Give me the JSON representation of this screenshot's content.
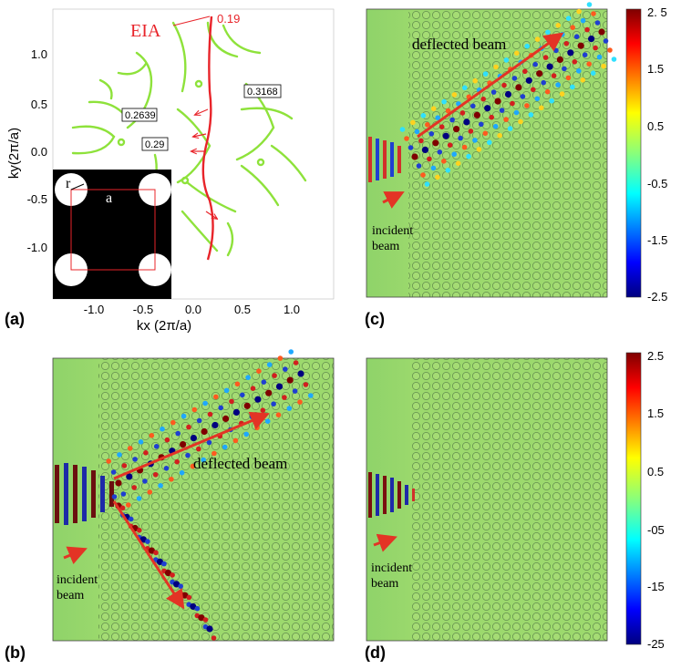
{
  "colors": {
    "contour": "#8ee23b",
    "eia": "#e8242a",
    "arrow": "#e33425",
    "field": "#9bd96b",
    "cmap": [
      "#00007f",
      "#0000ff",
      "#00ffff",
      "#8aff7a",
      "#ffff00",
      "#ff0000",
      "#7f0000"
    ]
  },
  "panel_a": {
    "label": "(a)",
    "xlabel": "kx (2π/a)",
    "ylabel": "ky(2π/a)",
    "xticks": [
      "-1.0",
      "-0.5",
      "0.0",
      "0.5",
      "1.0"
    ],
    "yticks": [
      "1.0",
      "0.5",
      "0.0",
      "-0.5",
      "-1.0"
    ],
    "eia_label": "EIA",
    "eia_value": "0.19",
    "contour_labels": [
      "0.2639",
      "0.29",
      "0.3168"
    ],
    "inset_r": "r",
    "inset_a": "a"
  },
  "panel_b": {
    "label": "(b)",
    "deflected": "deflected beam",
    "incident_line1": "incident",
    "incident_line2": "beam"
  },
  "panel_c": {
    "label": "(c)",
    "deflected": "deflected beam",
    "incident_line1": "incident",
    "incident_line2": "beam",
    "colorbar_ticks": [
      "2. 5",
      "1.5",
      "0.5",
      "-0.5",
      "-1.5",
      "-2.5"
    ]
  },
  "panel_d": {
    "label": "(d)",
    "incident_line1": "incident",
    "incident_line2": "beam",
    "colorbar_ticks": [
      "2.5",
      "1.5",
      "0.5",
      "-05",
      "-15",
      "-25"
    ]
  }
}
